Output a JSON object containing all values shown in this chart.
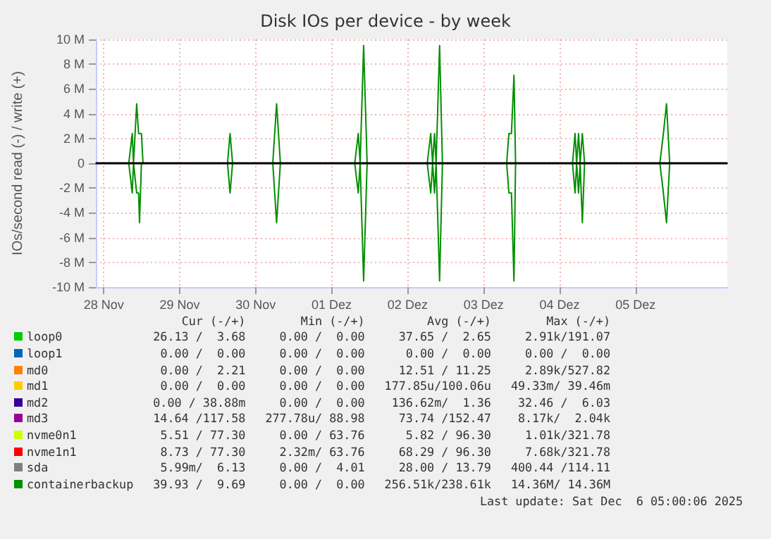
{
  "chart_data": {
    "type": "line",
    "title": "Disk IOs per device - by week",
    "ylabel": "IOs/second read (-) / write (+)",
    "xlim": [
      "2025-11-27T21:30",
      "2025-12-06T05:00"
    ],
    "xticks": [
      {
        "value": "2025-11-28T00:00",
        "label": "28 Nov"
      },
      {
        "value": "2025-11-29T00:00",
        "label": "29 Nov"
      },
      {
        "value": "2025-11-30T00:00",
        "label": "30 Nov"
      },
      {
        "value": "2025-12-01T00:00",
        "label": "01 Dez"
      },
      {
        "value": "2025-12-02T00:00",
        "label": "02 Dez"
      },
      {
        "value": "2025-12-03T00:00",
        "label": "03 Dez"
      },
      {
        "value": "2025-12-04T00:00",
        "label": "04 Dez"
      },
      {
        "value": "2025-12-05T00:00",
        "label": "05 Dez"
      }
    ],
    "ylim": [
      -10000000,
      10000000
    ],
    "yticks": [
      {
        "value": -10000000,
        "label": "-10 M"
      },
      {
        "value": -8000000,
        "label": "-8 M"
      },
      {
        "value": -6000000,
        "label": "-6 M"
      },
      {
        "value": -4000000,
        "label": "-4 M"
      },
      {
        "value": -2000000,
        "label": "-2 M"
      },
      0,
      {
        "value": 2000000,
        "label": "2 M"
      },
      {
        "value": 4000000,
        "label": "4 M"
      },
      {
        "value": 6000000,
        "label": "6 M"
      },
      {
        "value": 8000000,
        "label": "8 M"
      },
      {
        "value": 10000000,
        "label": "10 M"
      }
    ],
    "grid": true,
    "legend": "bottom",
    "marker": "none",
    "line_style": "solid",
    "ref_lines": [
      {
        "axis": "y",
        "value": 0,
        "color": "#000000"
      }
    ],
    "series": [
      {
        "name": "loop0",
        "color": "#00cc00"
      },
      {
        "name": "loop1",
        "color": "#0066b3"
      },
      {
        "name": "md0",
        "color": "#ff8000"
      },
      {
        "name": "md1",
        "color": "#ffcc00"
      },
      {
        "name": "md2",
        "color": "#330099"
      },
      {
        "name": "md3",
        "color": "#990099"
      },
      {
        "name": "nvme0n1",
        "color": "#ccff00"
      },
      {
        "name": "nvme1n1",
        "color": "#ff0000"
      },
      {
        "name": "sda",
        "color": "#808080"
      },
      {
        "name": "containerbackup",
        "color": "#008f00",
        "x": [
          "2025-11-27T21:30",
          "2025-11-28T07:54",
          "2025-11-28T09:00",
          "2025-11-28T09:24",
          "2025-11-28T10:24",
          "2025-11-28T11:00",
          "2025-11-28T11:18",
          "2025-11-28T11:54",
          "2025-11-28T12:24",
          "2025-11-29T15:06",
          "2025-11-29T15:54",
          "2025-11-29T16:42",
          "2025-11-30T05:24",
          "2025-11-30T06:36",
          "2025-11-30T07:48",
          "2025-12-01T07:18",
          "2025-12-01T08:24",
          "2025-12-01T09:00",
          "2025-12-01T10:06",
          "2025-12-01T11:12",
          "2025-12-02T06:12",
          "2025-12-02T07:18",
          "2025-12-02T07:54",
          "2025-12-02T08:30",
          "2025-12-02T09:00",
          "2025-12-02T10:06",
          "2025-12-02T11:00",
          "2025-12-03T07:18",
          "2025-12-03T08:00",
          "2025-12-03T08:48",
          "2025-12-03T09:36",
          "2025-12-03T10:06",
          "2025-12-04T04:06",
          "2025-12-04T04:54",
          "2025-12-04T05:24",
          "2025-12-04T06:00",
          "2025-12-04T06:30",
          "2025-12-04T07:12",
          "2025-12-04T07:54",
          "2025-12-05T07:42",
          "2025-12-05T08:48",
          "2025-12-05T09:48",
          "2025-12-05T10:48",
          "2025-12-06T05:00"
        ],
        "values": [
          0,
          0,
          2400000,
          0,
          4800000,
          2400000,
          2400000,
          2400000,
          0,
          0,
          2400000,
          0,
          0,
          4800000,
          0,
          0,
          2400000,
          0,
          9500000,
          0,
          0,
          2400000,
          0,
          2400000,
          0,
          9500000,
          0,
          0,
          2400000,
          2400000,
          7100000,
          0,
          0,
          2400000,
          0,
          2400000,
          0,
          2400000,
          0,
          0,
          2400000,
          4800000,
          0,
          0
        ]
      },
      {
        "color": "#008f00",
        "x": [
          "2025-11-27T21:30",
          "2025-11-28T07:54",
          "2025-11-28T09:00",
          "2025-11-28T09:24",
          "2025-11-28T10:24",
          "2025-11-28T11:00",
          "2025-11-28T11:18",
          "2025-11-28T11:54",
          "2025-11-28T12:24",
          "2025-11-29T15:06",
          "2025-11-29T15:54",
          "2025-11-29T16:42",
          "2025-11-30T05:24",
          "2025-11-30T06:36",
          "2025-11-30T07:48",
          "2025-12-01T07:18",
          "2025-12-01T08:24",
          "2025-12-01T09:00",
          "2025-12-01T10:06",
          "2025-12-01T11:12",
          "2025-12-02T06:12",
          "2025-12-02T07:18",
          "2025-12-02T07:54",
          "2025-12-02T08:30",
          "2025-12-02T09:00",
          "2025-12-02T10:06",
          "2025-12-02T11:00",
          "2025-12-03T07:18",
          "2025-12-03T08:00",
          "2025-12-03T08:48",
          "2025-12-03T09:36",
          "2025-12-03T10:06",
          "2025-12-04T04:06",
          "2025-12-04T04:54",
          "2025-12-04T05:24",
          "2025-12-04T06:00",
          "2025-12-04T06:30",
          "2025-12-04T07:12",
          "2025-12-04T07:54",
          "2025-12-05T07:42",
          "2025-12-05T08:48",
          "2025-12-05T09:48",
          "2025-12-05T10:48",
          "2025-12-06T05:00"
        ],
        "values": [
          0,
          0,
          -2400000,
          0,
          -2400000,
          -2400000,
          -4800000,
          0,
          0,
          0,
          -2400000,
          0,
          0,
          -4800000,
          0,
          0,
          -2400000,
          0,
          -9500000,
          0,
          0,
          -2400000,
          0,
          -2400000,
          0,
          -9500000,
          0,
          0,
          -2400000,
          -2400000,
          -9500000,
          0,
          0,
          -2400000,
          0,
          -2400000,
          0,
          -4800000,
          0,
          0,
          -2400000,
          -4800000,
          0,
          0
        ]
      }
    ],
    "annotations": [
      "Cur (-/+)",
      "Min (-/+)",
      "Avg (-/+)",
      "Max (-/+)",
      "26.13 /  3.68",
      "0.00 /  0.00",
      "37.65 /  2.65",
      "2.91k/191.07",
      "0.00 /  0.00",
      "0.00 /  0.00",
      "0.00 /  0.00",
      "0.00 /  0.00",
      "0.00 /  2.21",
      "0.00 /  0.00",
      "12.51 / 11.25",
      "2.89k/527.82",
      "0.00 /  0.00",
      "0.00 /  0.00",
      "177.85u/100.06u",
      "49.33m/ 39.46m",
      "0.00 / 38.88m",
      "0.00 /  0.00",
      "136.62m/  1.36",
      "32.46 /  6.03",
      "14.64 /117.58",
      "277.78u/ 88.98",
      "73.74 /152.47",
      "8.17k/  2.04k",
      "5.51 / 77.30",
      "0.00 / 63.76",
      "5.82 / 96.30",
      "1.01k/321.78",
      "8.73 / 77.30",
      "2.32m/ 63.76",
      "68.29 / 96.30",
      "7.68k/321.78",
      "5.99m/  6.13",
      "0.00 /  4.01",
      "28.00 / 13.79",
      "400.44 /114.11",
      "39.93 /  9.69",
      "0.00 /  0.00",
      "256.51k/238.61k",
      "14.36M/ 14.36M",
      "Last update: Sat Dec  6 05:00:06 2025"
    ]
  }
}
